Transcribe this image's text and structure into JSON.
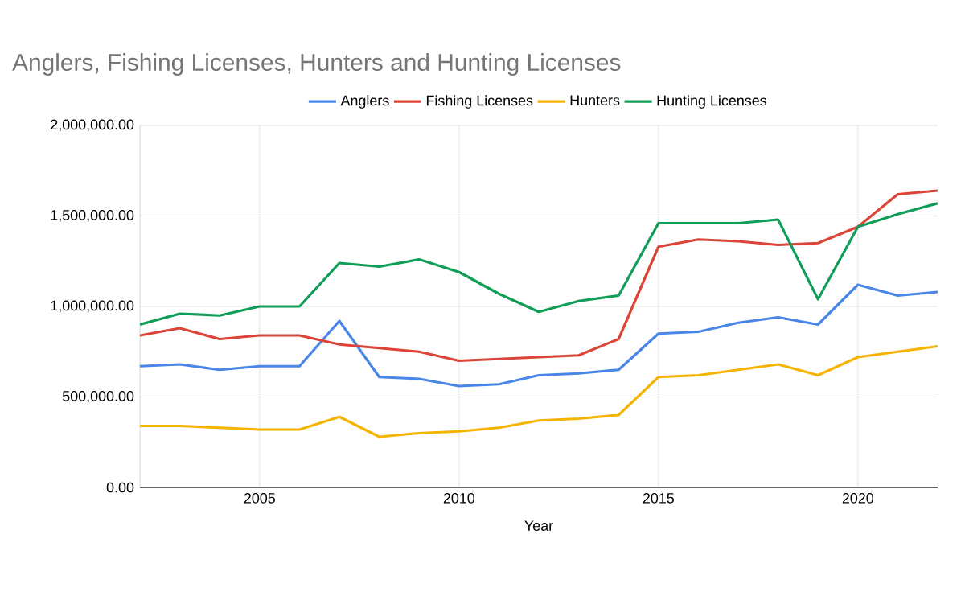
{
  "chart_data": {
    "type": "line",
    "title": "Anglers, Fishing Licenses, Hunters and Hunting Licenses",
    "xlabel": "Year",
    "x": [
      2002,
      2003,
      2004,
      2005,
      2006,
      2007,
      2008,
      2009,
      2010,
      2011,
      2012,
      2013,
      2014,
      2015,
      2016,
      2017,
      2018,
      2019,
      2020,
      2021,
      2022
    ],
    "series": [
      {
        "name": "Anglers",
        "color": "#4a86e8",
        "values": [
          670000,
          680000,
          650000,
          670000,
          670000,
          920000,
          610000,
          600000,
          560000,
          570000,
          620000,
          630000,
          650000,
          850000,
          860000,
          910000,
          940000,
          900000,
          1120000,
          1060000,
          1080000
        ]
      },
      {
        "name": "Fishing Licenses",
        "color": "#db4437",
        "values": [
          840000,
          880000,
          820000,
          840000,
          840000,
          790000,
          770000,
          750000,
          700000,
          710000,
          720000,
          730000,
          820000,
          1330000,
          1370000,
          1360000,
          1340000,
          1350000,
          1440000,
          1620000,
          1640000
        ]
      },
      {
        "name": "Hunters",
        "color": "#f4b400",
        "values": [
          340000,
          340000,
          330000,
          320000,
          320000,
          390000,
          280000,
          300000,
          310000,
          330000,
          370000,
          380000,
          400000,
          610000,
          620000,
          650000,
          680000,
          620000,
          720000,
          750000,
          780000
        ]
      },
      {
        "name": "Hunting Licenses",
        "color": "#0f9d58",
        "values": [
          900000,
          960000,
          950000,
          1000000,
          1000000,
          1240000,
          1220000,
          1260000,
          1190000,
          1070000,
          970000,
          1030000,
          1060000,
          1460000,
          1460000,
          1460000,
          1480000,
          1040000,
          1440000,
          1510000,
          1570000
        ]
      }
    ],
    "xlim": [
      2002,
      2022
    ],
    "xticks": [
      2005,
      2010,
      2015,
      2020
    ],
    "ylim": [
      0,
      2000000
    ],
    "yticks": [
      {
        "value": 0,
        "label": "0.00"
      },
      {
        "value": 500000,
        "label": "500,000.00"
      },
      {
        "value": 1000000,
        "label": "1,000,000.00"
      },
      {
        "value": 1500000,
        "label": "1,500,000.00"
      },
      {
        "value": 2000000,
        "label": "2,000,000.00"
      }
    ],
    "grid": true,
    "legend": "top",
    "marker": "none",
    "line_style": "solid"
  }
}
